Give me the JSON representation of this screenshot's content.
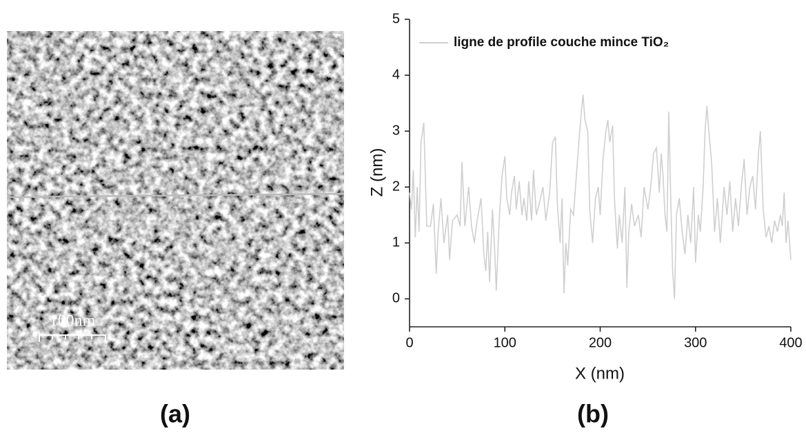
{
  "panel_a": {
    "scale_bar_label": "100nm",
    "caption": "(a)"
  },
  "chart_data": {
    "type": "line",
    "caption": "(b)",
    "x_label": "X (nm)",
    "y_label": "Z (nm)",
    "x": [
      0,
      2,
      4,
      6,
      8,
      10,
      12,
      15,
      18,
      22,
      25,
      28,
      30,
      33,
      36,
      40,
      42,
      45,
      50,
      53,
      55,
      58,
      62,
      65,
      68,
      70,
      72,
      75,
      78,
      80,
      82,
      84,
      87,
      89,
      91,
      94,
      97,
      100,
      102,
      105,
      107,
      110,
      112,
      115,
      118,
      120,
      123,
      125,
      128,
      130,
      133,
      136,
      140,
      143,
      147,
      150,
      153,
      155,
      158,
      160,
      162,
      164,
      166,
      169,
      172,
      175,
      178,
      180,
      182,
      184,
      187,
      189,
      192,
      195,
      198,
      200,
      203,
      206,
      208,
      210,
      213,
      215,
      218,
      220,
      223,
      226,
      228,
      230,
      233,
      236,
      240,
      243,
      246,
      250,
      253,
      256,
      259,
      262,
      264,
      266,
      268,
      270,
      272,
      274,
      276,
      278,
      280,
      283,
      286,
      289,
      292,
      295,
      298,
      300,
      303,
      305,
      308,
      310,
      312,
      314,
      317,
      320,
      323,
      326,
      330,
      333,
      336,
      339,
      342,
      345,
      348,
      351,
      354,
      357,
      360,
      363,
      366,
      368,
      371,
      374,
      377,
      380,
      383,
      386,
      389,
      391,
      393,
      395,
      397,
      400
    ],
    "series": [
      {
        "name": "ligne de profile couche mince TiO₂",
        "color": "#cfcfcf",
        "values": [
          1.9,
          1.6,
          2.3,
          1.1,
          2.0,
          1.2,
          2.8,
          3.15,
          1.3,
          1.3,
          1.7,
          0.45,
          1.2,
          1.8,
          1.0,
          1.5,
          0.7,
          1.4,
          1.5,
          1.3,
          2.45,
          1.3,
          2.0,
          1.3,
          1.0,
          1.3,
          1.5,
          1.8,
          0.8,
          0.5,
          1.2,
          0.3,
          1.6,
          1.0,
          0.15,
          1.4,
          2.2,
          2.55,
          1.8,
          1.5,
          1.9,
          2.2,
          1.6,
          2.1,
          1.5,
          1.8,
          1.4,
          2.1,
          1.4,
          2.3,
          1.5,
          1.7,
          2.0,
          1.4,
          1.9,
          2.8,
          2.9,
          1.7,
          1.0,
          1.8,
          0.1,
          1.0,
          0.6,
          1.6,
          1.5,
          2.2,
          2.9,
          3.3,
          3.65,
          3.2,
          3.0,
          1.6,
          1.0,
          1.8,
          2.0,
          1.5,
          2.5,
          3.0,
          3.2,
          2.8,
          3.1,
          1.8,
          0.9,
          1.5,
          1.0,
          2.0,
          0.2,
          1.2,
          1.7,
          1.3,
          1.5,
          1.1,
          2.0,
          1.6,
          2.0,
          2.6,
          2.7,
          1.9,
          2.6,
          2.2,
          1.5,
          1.2,
          3.35,
          1.8,
          0.5,
          0.0,
          1.5,
          1.8,
          1.2,
          0.8,
          1.5,
          1.0,
          2.0,
          0.65,
          1.5,
          1.2,
          2.0,
          3.0,
          3.45,
          3.0,
          2.4,
          1.2,
          1.8,
          1.0,
          2.0,
          1.5,
          2.1,
          1.2,
          1.8,
          1.3,
          2.0,
          2.5,
          1.5,
          2.0,
          2.2,
          1.6,
          2.6,
          3.0,
          1.6,
          1.1,
          1.3,
          1.0,
          1.4,
          1.2,
          1.5,
          1.3,
          1.9,
          1.0,
          1.4,
          0.7
        ]
      }
    ],
    "xlim": [
      0,
      400
    ],
    "xticks": [
      0,
      100,
      200,
      300,
      400
    ],
    "ylim": [
      -0.5,
      5
    ],
    "yticks": [
      0,
      1,
      2,
      3,
      4,
      5
    ]
  }
}
